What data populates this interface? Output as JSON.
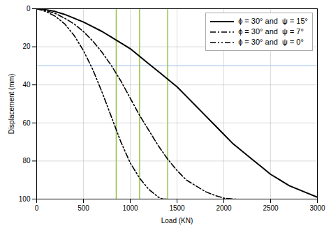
{
  "chart_data": {
    "type": "line",
    "xlabel": "Load (KN)",
    "ylabel": "Displacement (mm)",
    "xlim": [
      0,
      3000
    ],
    "ylim": [
      100,
      0
    ],
    "xticks": [
      0,
      500,
      1000,
      1500,
      2000,
      2500,
      3000
    ],
    "yticks": [
      0,
      20,
      40,
      60,
      80,
      100
    ],
    "grid": true,
    "legend": "upper right",
    "series": [
      {
        "name": "ϕ = 30° and  ψ = 15°",
        "color": "#000000",
        "line_style": "solid",
        "x": [
          0,
          100,
          200,
          300,
          400,
          500,
          600,
          700,
          800,
          900,
          1000,
          1100,
          1200,
          1300,
          1400,
          1500,
          1600,
          1700,
          1800,
          1900,
          2000,
          2100,
          2200,
          2300,
          2400,
          2500,
          2600,
          2700,
          2800,
          2900,
          3000
        ],
        "values": [
          0,
          0.5,
          1.5,
          3,
          5,
          7,
          9.5,
          12,
          15,
          18,
          21,
          25,
          29,
          33,
          37,
          41,
          46,
          51,
          56,
          61,
          66,
          71,
          75,
          79,
          83,
          87,
          90,
          93,
          95,
          97,
          99
        ]
      },
      {
        "name": "ϕ = 30° and  ψ = 7°",
        "color": "#000000",
        "line_style": "dashdot",
        "x": [
          0,
          100,
          200,
          300,
          400,
          500,
          600,
          700,
          800,
          900,
          1000,
          1100,
          1200,
          1300,
          1400,
          1500,
          1600,
          1700,
          1800,
          1900,
          2000,
          2100,
          2150
        ],
        "values": [
          0,
          1,
          2.5,
          5,
          8,
          12,
          17,
          23,
          30,
          38,
          47,
          56,
          64,
          72,
          79,
          85,
          90,
          93,
          96,
          98,
          99.5,
          100,
          100
        ]
      },
      {
        "name": "ϕ = 30° and  ψ = 0°",
        "color": "#000000",
        "line_style": "dashdotdot",
        "x": [
          0,
          100,
          200,
          300,
          400,
          500,
          600,
          700,
          800,
          900,
          1000,
          1100,
          1200,
          1300,
          1350,
          1400
        ],
        "values": [
          0,
          1.5,
          4,
          8,
          14,
          22,
          32,
          44,
          57,
          70,
          81,
          89,
          95,
          99,
          100,
          100
        ]
      }
    ],
    "hlines": [
      {
        "y": 30,
        "color": "#aaccee"
      }
    ],
    "vlines": [
      {
        "x": 850,
        "color": "#90c040"
      },
      {
        "x": 1100,
        "color": "#90c040"
      },
      {
        "x": 1400,
        "color": "#90c040"
      }
    ]
  }
}
